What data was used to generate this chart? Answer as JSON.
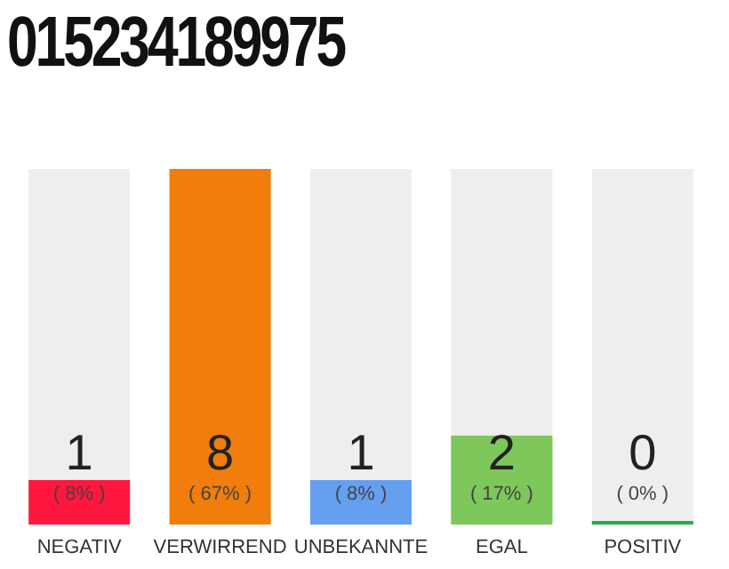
{
  "chart_data": {
    "type": "bar",
    "title": "015234189975",
    "categories": [
      "NEGATIV",
      "VERWIRREND",
      "UNBEKANNTE",
      "EGAL",
      "POSITIV"
    ],
    "values": [
      1,
      8,
      1,
      2,
      0
    ],
    "colors": [
      "#ff173d",
      "#f07d0c",
      "#659ff0",
      "#7dc75b",
      "#2ca844"
    ],
    "data_labels": true,
    "annotations": [
      "( 8% )",
      "( 67% )",
      "( 8% )",
      "( 17% )",
      "( 0% )"
    ],
    "grid": false,
    "legend": false
  }
}
